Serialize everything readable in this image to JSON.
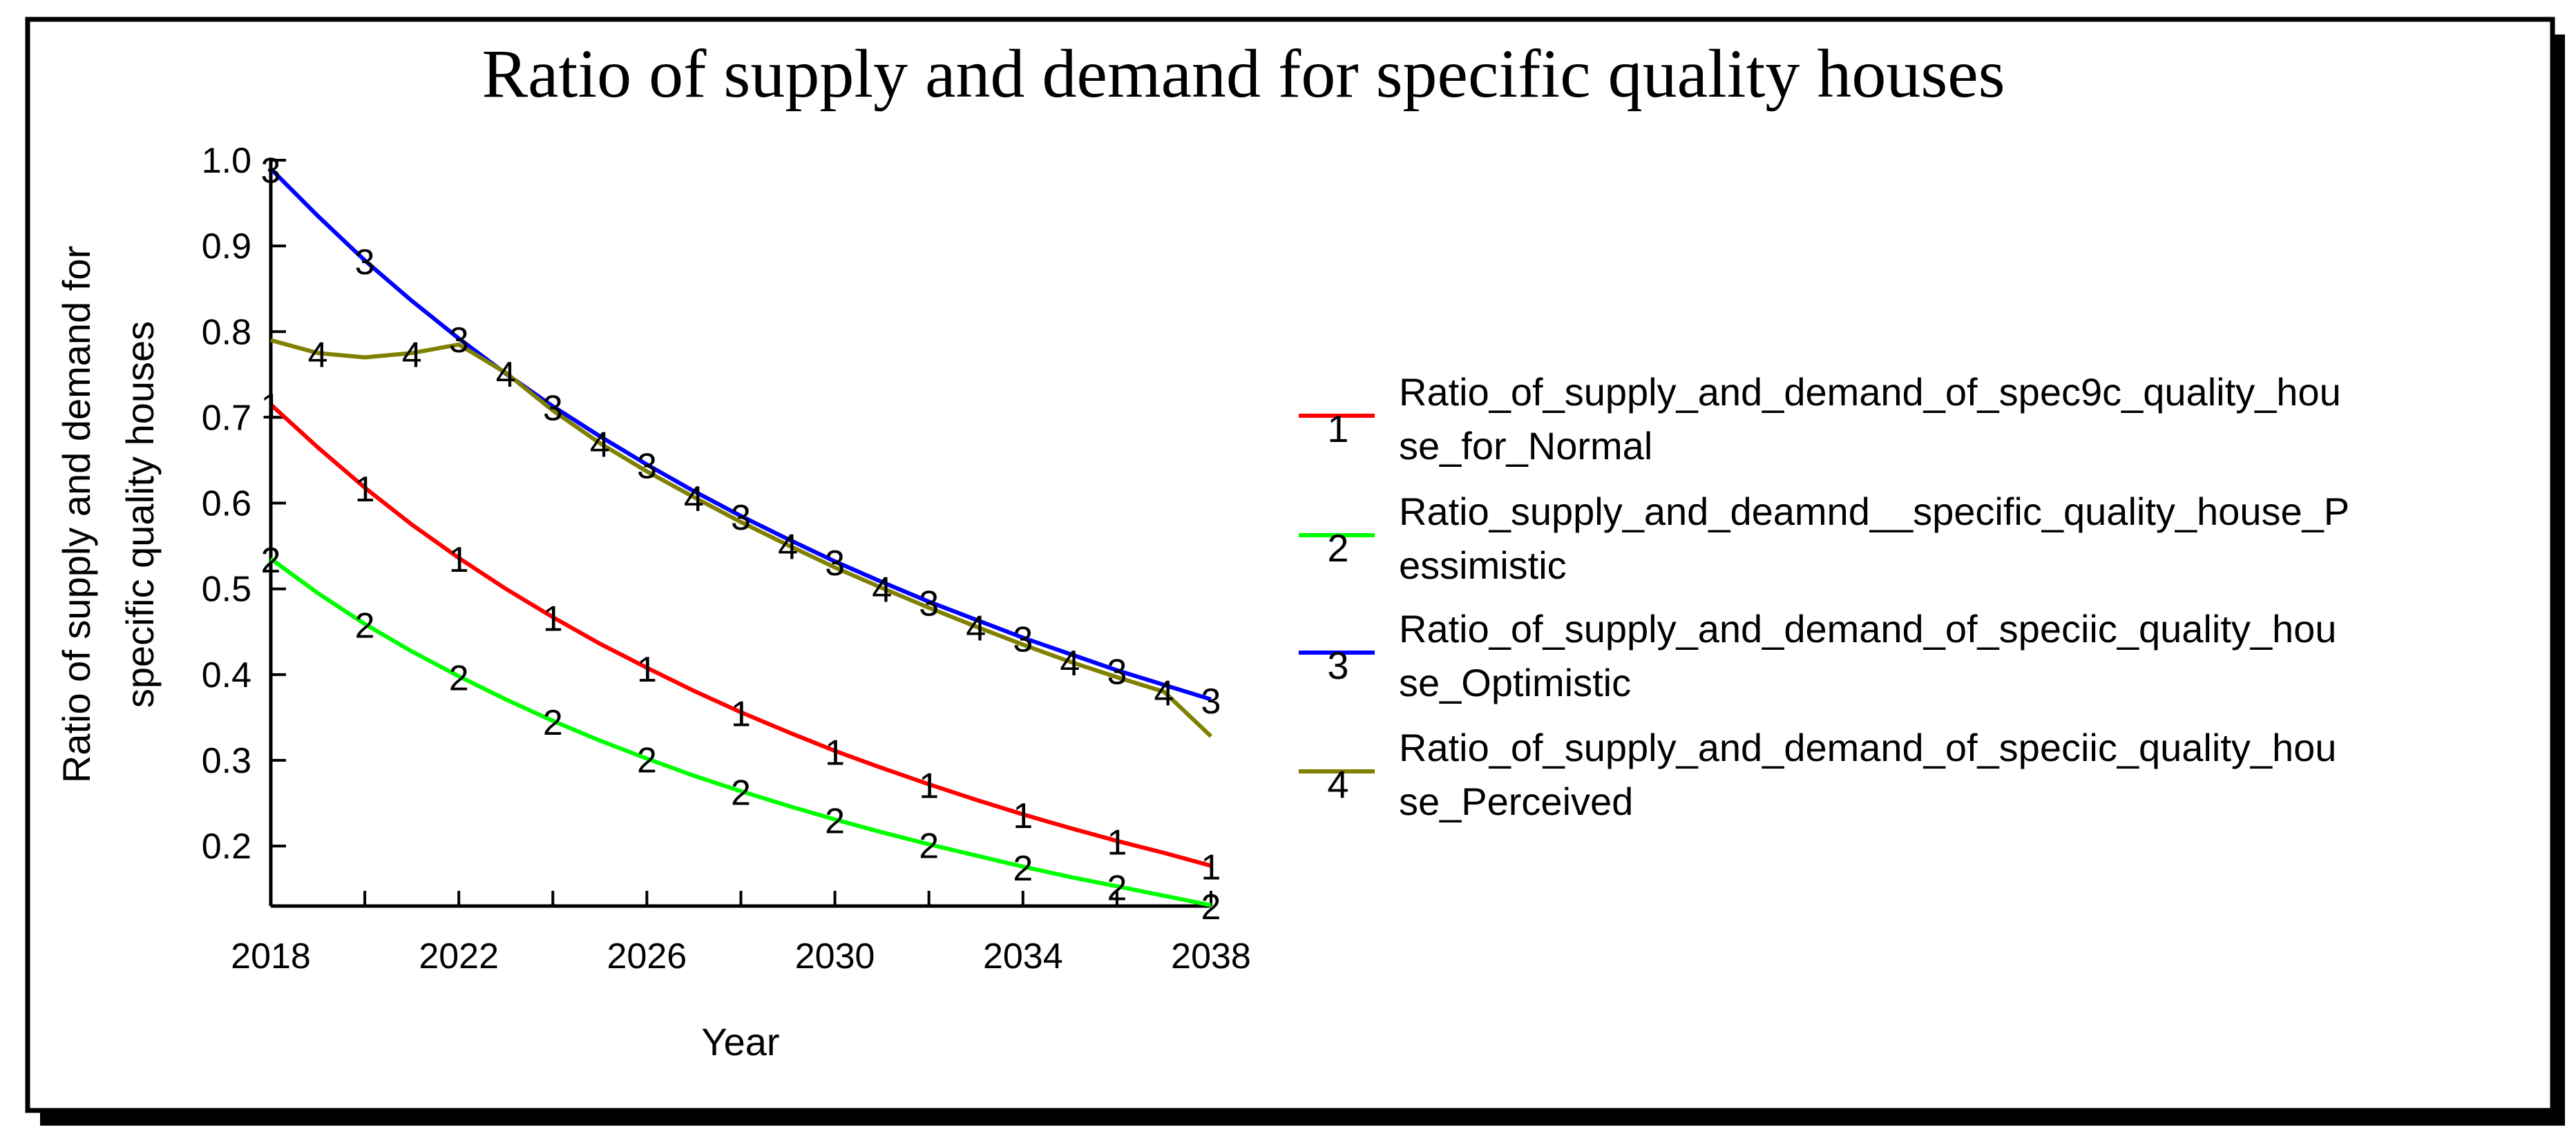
{
  "chart_data": {
    "type": "line",
    "title": "Ratio of supply and demand for specific quality houses",
    "xlabel": "Year",
    "ylabel_lines": [
      "Ratio of supply and demand for",
      "specific quality houses"
    ],
    "xlim": [
      2018,
      2038
    ],
    "ylim": [
      0.13,
      1.0
    ],
    "x_ticks": [
      "2018",
      "2022",
      "2026",
      "2030",
      "2034",
      "2038"
    ],
    "y_ticks": [
      "0.2",
      "0.3",
      "0.4",
      "0.5",
      "0.6",
      "0.7",
      "0.8",
      "0.9",
      "1.0"
    ],
    "x": [
      2018,
      2019,
      2020,
      2021,
      2022,
      2023,
      2024,
      2025,
      2026,
      2027,
      2028,
      2029,
      2030,
      2031,
      2032,
      2033,
      2034,
      2035,
      2036,
      2037,
      2038
    ],
    "series": [
      {
        "marker": "1",
        "name_lines": [
          "Ratio_of_supply_and_demand_of_spec9c_quality_hou",
          "se_for_Normal"
        ],
        "color": "#ff0000",
        "values": [
          0.715,
          0.665,
          0.618,
          0.575,
          0.536,
          0.5,
          0.467,
          0.436,
          0.408,
          0.381,
          0.356,
          0.333,
          0.311,
          0.291,
          0.272,
          0.254,
          0.237,
          0.221,
          0.206,
          0.192,
          0.177
        ]
      },
      {
        "marker": "2",
        "name_lines": [
          "Ratio_supply_and_deamnd__specific_quality_house_P",
          "essimistic"
        ],
        "color": "#00ff00",
        "values": [
          0.535,
          0.495,
          0.459,
          0.427,
          0.398,
          0.371,
          0.346,
          0.323,
          0.302,
          0.282,
          0.264,
          0.247,
          0.231,
          0.216,
          0.202,
          0.189,
          0.176,
          0.164,
          0.153,
          0.142,
          0.131
        ]
      },
      {
        "marker": "3",
        "name_lines": [
          "Ratio_of_supply_and_demand_of_speciic_quality_hou",
          "se_Optimistic"
        ],
        "color": "#0000ff",
        "values": [
          0.99,
          0.935,
          0.883,
          0.836,
          0.792,
          0.751,
          0.713,
          0.678,
          0.645,
          0.614,
          0.585,
          0.558,
          0.532,
          0.508,
          0.485,
          0.464,
          0.443,
          0.424,
          0.405,
          0.388,
          0.371
        ]
      },
      {
        "marker": "4",
        "name_lines": [
          "Ratio_of_supply_and_demand_of_speciic_quality_hou",
          "se_Perceived"
        ],
        "color": "#808000",
        "values": [
          0.79,
          0.775,
          0.77,
          0.775,
          0.785,
          0.752,
          0.708,
          0.67,
          0.637,
          0.607,
          0.578,
          0.551,
          0.525,
          0.501,
          0.478,
          0.456,
          0.435,
          0.415,
          0.397,
          0.38,
          0.328
        ]
      }
    ]
  }
}
